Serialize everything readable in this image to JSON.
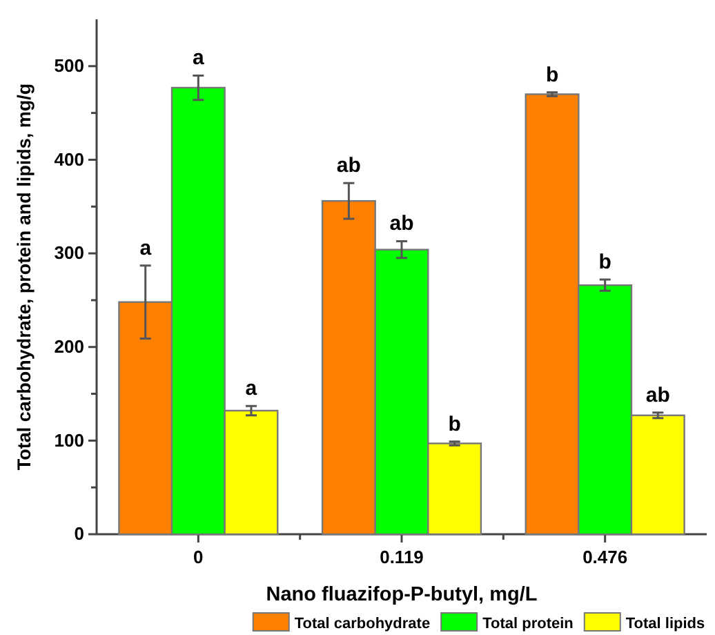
{
  "chart_data": {
    "type": "bar",
    "xlabel": "Nano fluazifop-P-butyl, mg/L",
    "ylabel": "Total carbohydrate, protein and lipids, mg/g",
    "categories": [
      "0",
      "0.119",
      "0.476"
    ],
    "series": [
      {
        "name": "Total carbohydrate",
        "color": "#ff8000",
        "values": [
          248,
          356,
          470
        ],
        "errors": [
          39,
          19,
          2
        ]
      },
      {
        "name": "Total protein",
        "color": "#00ff00",
        "values": [
          477,
          304,
          266
        ],
        "errors": [
          13,
          9,
          6
        ]
      },
      {
        "name": "Total lipids",
        "color": "#ffff00",
        "values": [
          132,
          97,
          127
        ],
        "errors": [
          5,
          2,
          3
        ]
      }
    ],
    "ylim": [
      0,
      550
    ],
    "yticks": [
      0,
      {
        "value": 50,
        "label": null
      },
      100,
      {
        "value": 150,
        "label": null
      },
      200,
      {
        "value": 250,
        "label": null
      },
      300,
      {
        "value": 350,
        "label": null
      },
      400,
      {
        "value": 450,
        "label": null
      },
      500
    ],
    "annotations": [
      "a",
      "a",
      "a",
      "ab",
      "ab",
      "b",
      "b",
      "b",
      "ab"
    ],
    "legend": "bottom",
    "grid": false
  }
}
